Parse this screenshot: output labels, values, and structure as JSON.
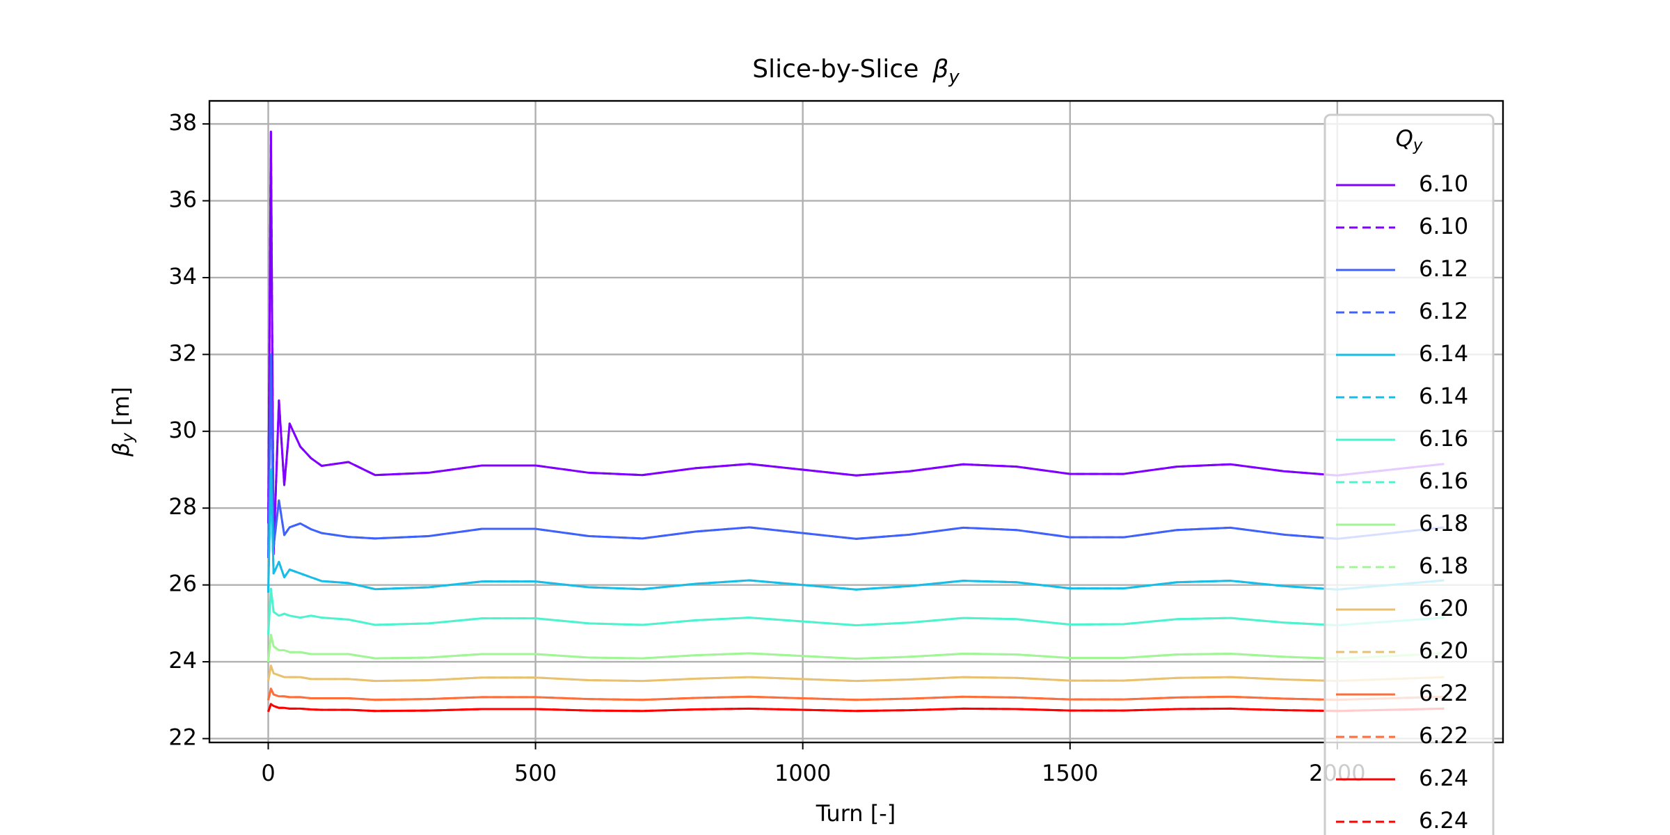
{
  "chart_data": {
    "type": "line",
    "title": {
      "text": "Slice-by-Slice",
      "symbol": "β",
      "sub": "y"
    },
    "xlabel": "Turn [-]",
    "ylabel": {
      "symbol": "β",
      "sub": "y",
      "unit": "[m]"
    },
    "legend_title": {
      "symbol": "Q",
      "sub": "y"
    },
    "legend_loc": "upper right",
    "grid": true,
    "xlim": [
      -110,
      2310
    ],
    "xticks": [
      0,
      500,
      1000,
      1500,
      2000
    ],
    "ylim": [
      21.9,
      38.6
    ],
    "yticks": [
      22,
      24,
      26,
      28,
      30,
      32,
      34,
      36,
      38
    ],
    "x": [
      0,
      5,
      10,
      20,
      30,
      40,
      60,
      80,
      100,
      150,
      200,
      300,
      400,
      500,
      600,
      700,
      800,
      900,
      1000,
      1100,
      1200,
      1300,
      1400,
      1500,
      1600,
      1700,
      1800,
      1900,
      2000,
      2100,
      2200
    ],
    "series": [
      {
        "name": "6.10",
        "color": "#8000ff",
        "linestyle": "solid",
        "values": [
          27.6,
          37.8,
          26.8,
          30.8,
          28.6,
          30.2,
          29.6,
          29.3,
          29.1,
          29.2,
          28.86,
          28.92,
          29.11,
          29.11,
          28.92,
          28.86,
          29.04,
          29.15,
          29.0,
          28.85,
          28.96,
          29.14,
          29.08,
          28.89,
          28.89,
          29.08,
          29.14,
          28.96,
          28.85,
          29.0,
          29.15
        ]
      },
      {
        "name": "6.10",
        "color": "#8000ff",
        "linestyle": "dashed",
        "values": [
          27.6,
          37.8,
          26.8,
          30.8,
          28.6,
          30.2,
          29.6,
          29.3,
          29.1,
          29.2,
          28.86,
          28.92,
          29.11,
          29.11,
          28.92,
          28.86,
          29.04,
          29.15,
          29.0,
          28.85,
          28.96,
          29.14,
          29.08,
          28.89,
          28.89,
          29.08,
          29.14,
          28.96,
          28.85,
          29.0,
          29.15
        ]
      },
      {
        "name": "6.12",
        "color": "#4062fa",
        "linestyle": "solid",
        "values": [
          26.7,
          32.0,
          27.0,
          28.2,
          27.3,
          27.5,
          27.6,
          27.45,
          27.35,
          27.25,
          27.21,
          27.27,
          27.46,
          27.46,
          27.27,
          27.21,
          27.39,
          27.5,
          27.35,
          27.2,
          27.31,
          27.49,
          27.43,
          27.24,
          27.24,
          27.43,
          27.49,
          27.31,
          27.2,
          27.35,
          27.5
        ]
      },
      {
        "name": "6.12",
        "color": "#4062fa",
        "linestyle": "dashed",
        "values": [
          26.7,
          32.0,
          27.0,
          28.2,
          27.3,
          27.5,
          27.6,
          27.45,
          27.35,
          27.25,
          27.21,
          27.27,
          27.46,
          27.46,
          27.27,
          27.21,
          27.39,
          27.5,
          27.35,
          27.2,
          27.31,
          27.49,
          27.43,
          27.24,
          27.24,
          27.43,
          27.49,
          27.31,
          27.2,
          27.35,
          27.5
        ]
      },
      {
        "name": "6.14",
        "color": "#18bde6",
        "linestyle": "solid",
        "values": [
          25.8,
          29.0,
          26.3,
          26.6,
          26.2,
          26.4,
          26.3,
          26.2,
          26.1,
          26.05,
          25.89,
          25.94,
          26.09,
          26.09,
          25.94,
          25.89,
          26.03,
          26.12,
          26.0,
          25.88,
          25.97,
          26.11,
          26.07,
          25.91,
          25.91,
          26.07,
          26.11,
          25.97,
          25.88,
          26.0,
          26.12
        ]
      },
      {
        "name": "6.14",
        "color": "#18bde6",
        "linestyle": "dashed",
        "values": [
          25.8,
          29.0,
          26.3,
          26.6,
          26.2,
          26.4,
          26.3,
          26.2,
          26.1,
          26.05,
          25.89,
          25.94,
          26.09,
          26.09,
          25.94,
          25.89,
          26.03,
          26.12,
          26.0,
          25.88,
          25.97,
          26.11,
          26.07,
          25.91,
          25.91,
          26.07,
          26.11,
          25.97,
          25.88,
          26.0,
          26.12
        ]
      },
      {
        "name": "6.16",
        "color": "#4df3ce",
        "linestyle": "solid",
        "values": [
          24.7,
          25.9,
          25.3,
          25.2,
          25.25,
          25.2,
          25.15,
          25.2,
          25.15,
          25.1,
          24.96,
          25.0,
          25.13,
          25.13,
          25.0,
          24.96,
          25.08,
          25.15,
          25.05,
          24.95,
          25.02,
          25.14,
          25.11,
          24.97,
          24.98,
          25.11,
          25.14,
          25.02,
          24.95,
          25.05,
          25.15
        ]
      },
      {
        "name": "6.16",
        "color": "#4df3ce",
        "linestyle": "dashed",
        "values": [
          24.7,
          25.9,
          25.3,
          25.2,
          25.25,
          25.2,
          25.15,
          25.2,
          25.15,
          25.1,
          24.96,
          25.0,
          25.13,
          25.13,
          25.0,
          24.96,
          25.08,
          25.15,
          25.05,
          24.95,
          25.02,
          25.14,
          25.11,
          24.97,
          24.98,
          25.11,
          25.14,
          25.02,
          24.95,
          25.05,
          25.15
        ]
      },
      {
        "name": "6.18",
        "color": "#a0f594",
        "linestyle": "solid",
        "values": [
          24.0,
          24.7,
          24.4,
          24.3,
          24.3,
          24.25,
          24.25,
          24.2,
          24.2,
          24.2,
          24.09,
          24.11,
          24.2,
          24.2,
          24.11,
          24.09,
          24.17,
          24.22,
          24.15,
          24.08,
          24.13,
          24.21,
          24.19,
          24.1,
          24.1,
          24.19,
          24.21,
          24.13,
          24.08,
          24.15,
          24.22
        ]
      },
      {
        "name": "6.18",
        "color": "#a0f594",
        "linestyle": "dashed",
        "values": [
          24.0,
          24.7,
          24.4,
          24.3,
          24.3,
          24.25,
          24.25,
          24.2,
          24.2,
          24.2,
          24.09,
          24.11,
          24.2,
          24.2,
          24.11,
          24.09,
          24.17,
          24.22,
          24.15,
          24.08,
          24.13,
          24.21,
          24.19,
          24.1,
          24.1,
          24.19,
          24.21,
          24.13,
          24.08,
          24.15,
          24.22
        ]
      },
      {
        "name": "6.20",
        "color": "#e8c170",
        "linestyle": "solid",
        "values": [
          23.5,
          23.9,
          23.7,
          23.65,
          23.6,
          23.6,
          23.6,
          23.55,
          23.55,
          23.55,
          23.5,
          23.52,
          23.59,
          23.59,
          23.52,
          23.5,
          23.56,
          23.6,
          23.55,
          23.5,
          23.54,
          23.6,
          23.58,
          23.51,
          23.51,
          23.58,
          23.6,
          23.54,
          23.5,
          23.55,
          23.6
        ]
      },
      {
        "name": "6.20",
        "color": "#e8c170",
        "linestyle": "dashed",
        "values": [
          23.5,
          23.9,
          23.7,
          23.65,
          23.6,
          23.6,
          23.6,
          23.55,
          23.55,
          23.55,
          23.5,
          23.52,
          23.59,
          23.59,
          23.52,
          23.5,
          23.56,
          23.6,
          23.55,
          23.5,
          23.54,
          23.6,
          23.58,
          23.51,
          23.51,
          23.58,
          23.6,
          23.54,
          23.5,
          23.55,
          23.6
        ]
      },
      {
        "name": "6.22",
        "color": "#ff6d38",
        "linestyle": "solid",
        "values": [
          23.0,
          23.3,
          23.15,
          23.1,
          23.1,
          23.08,
          23.08,
          23.05,
          23.05,
          23.05,
          23.01,
          23.03,
          23.08,
          23.08,
          23.03,
          23.01,
          23.06,
          23.09,
          23.05,
          23.01,
          23.04,
          23.09,
          23.07,
          23.02,
          23.02,
          23.07,
          23.09,
          23.04,
          23.01,
          23.05,
          23.09
        ]
      },
      {
        "name": "6.22",
        "color": "#ff6d38",
        "linestyle": "dashed",
        "values": [
          23.0,
          23.3,
          23.15,
          23.1,
          23.1,
          23.08,
          23.08,
          23.05,
          23.05,
          23.05,
          23.01,
          23.03,
          23.08,
          23.08,
          23.03,
          23.01,
          23.06,
          23.09,
          23.05,
          23.01,
          23.04,
          23.09,
          23.07,
          23.02,
          23.02,
          23.07,
          23.09,
          23.04,
          23.01,
          23.05,
          23.09
        ]
      },
      {
        "name": "6.24",
        "color": "#ff0000",
        "linestyle": "solid",
        "values": [
          22.7,
          22.9,
          22.85,
          22.8,
          22.8,
          22.78,
          22.78,
          22.76,
          22.75,
          22.75,
          22.72,
          22.73,
          22.77,
          22.77,
          22.73,
          22.72,
          22.76,
          22.78,
          22.75,
          22.72,
          22.74,
          22.78,
          22.77,
          22.73,
          22.73,
          22.77,
          22.78,
          22.74,
          22.72,
          22.75,
          22.78
        ]
      },
      {
        "name": "6.24",
        "color": "#ff0000",
        "linestyle": "dashed",
        "values": [
          22.7,
          22.9,
          22.85,
          22.8,
          22.8,
          22.78,
          22.78,
          22.76,
          22.75,
          22.75,
          22.72,
          22.73,
          22.77,
          22.77,
          22.73,
          22.72,
          22.76,
          22.78,
          22.75,
          22.72,
          22.74,
          22.78,
          22.77,
          22.73,
          22.73,
          22.77,
          22.78,
          22.74,
          22.72,
          22.75,
          22.78
        ]
      }
    ]
  }
}
